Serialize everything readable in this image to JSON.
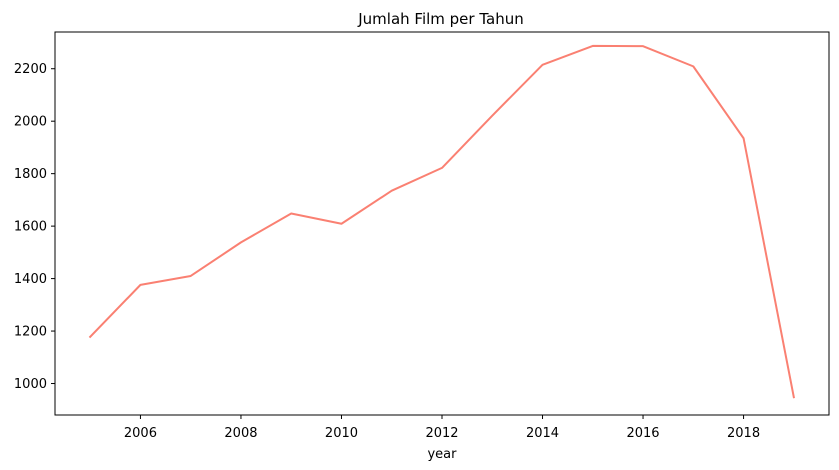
{
  "chart_data": {
    "type": "line",
    "title": "Jumlah Film per Tahun",
    "xlabel": "year",
    "ylabel": "",
    "xlim": [
      2004.3,
      2019.7
    ],
    "ylim": [
      880,
      2340
    ],
    "x_ticks": [
      2006,
      2008,
      2010,
      2012,
      2014,
      2016,
      2018
    ],
    "y_ticks": [
      1000,
      1200,
      1400,
      1600,
      1800,
      2000,
      2200
    ],
    "grid": false,
    "legend": "none",
    "series": [
      {
        "color": "#fa8072",
        "x": [
          2005,
          2006,
          2007,
          2008,
          2009,
          2010,
          2011,
          2012,
          2013,
          2014,
          2015,
          2016,
          2017,
          2018,
          2019
        ],
        "y": [
          1178,
          1376,
          1410,
          1538,
          1648,
          1609,
          1735,
          1822,
          2021,
          2215,
          2287,
          2286,
          2209,
          1935,
          948
        ]
      }
    ]
  }
}
